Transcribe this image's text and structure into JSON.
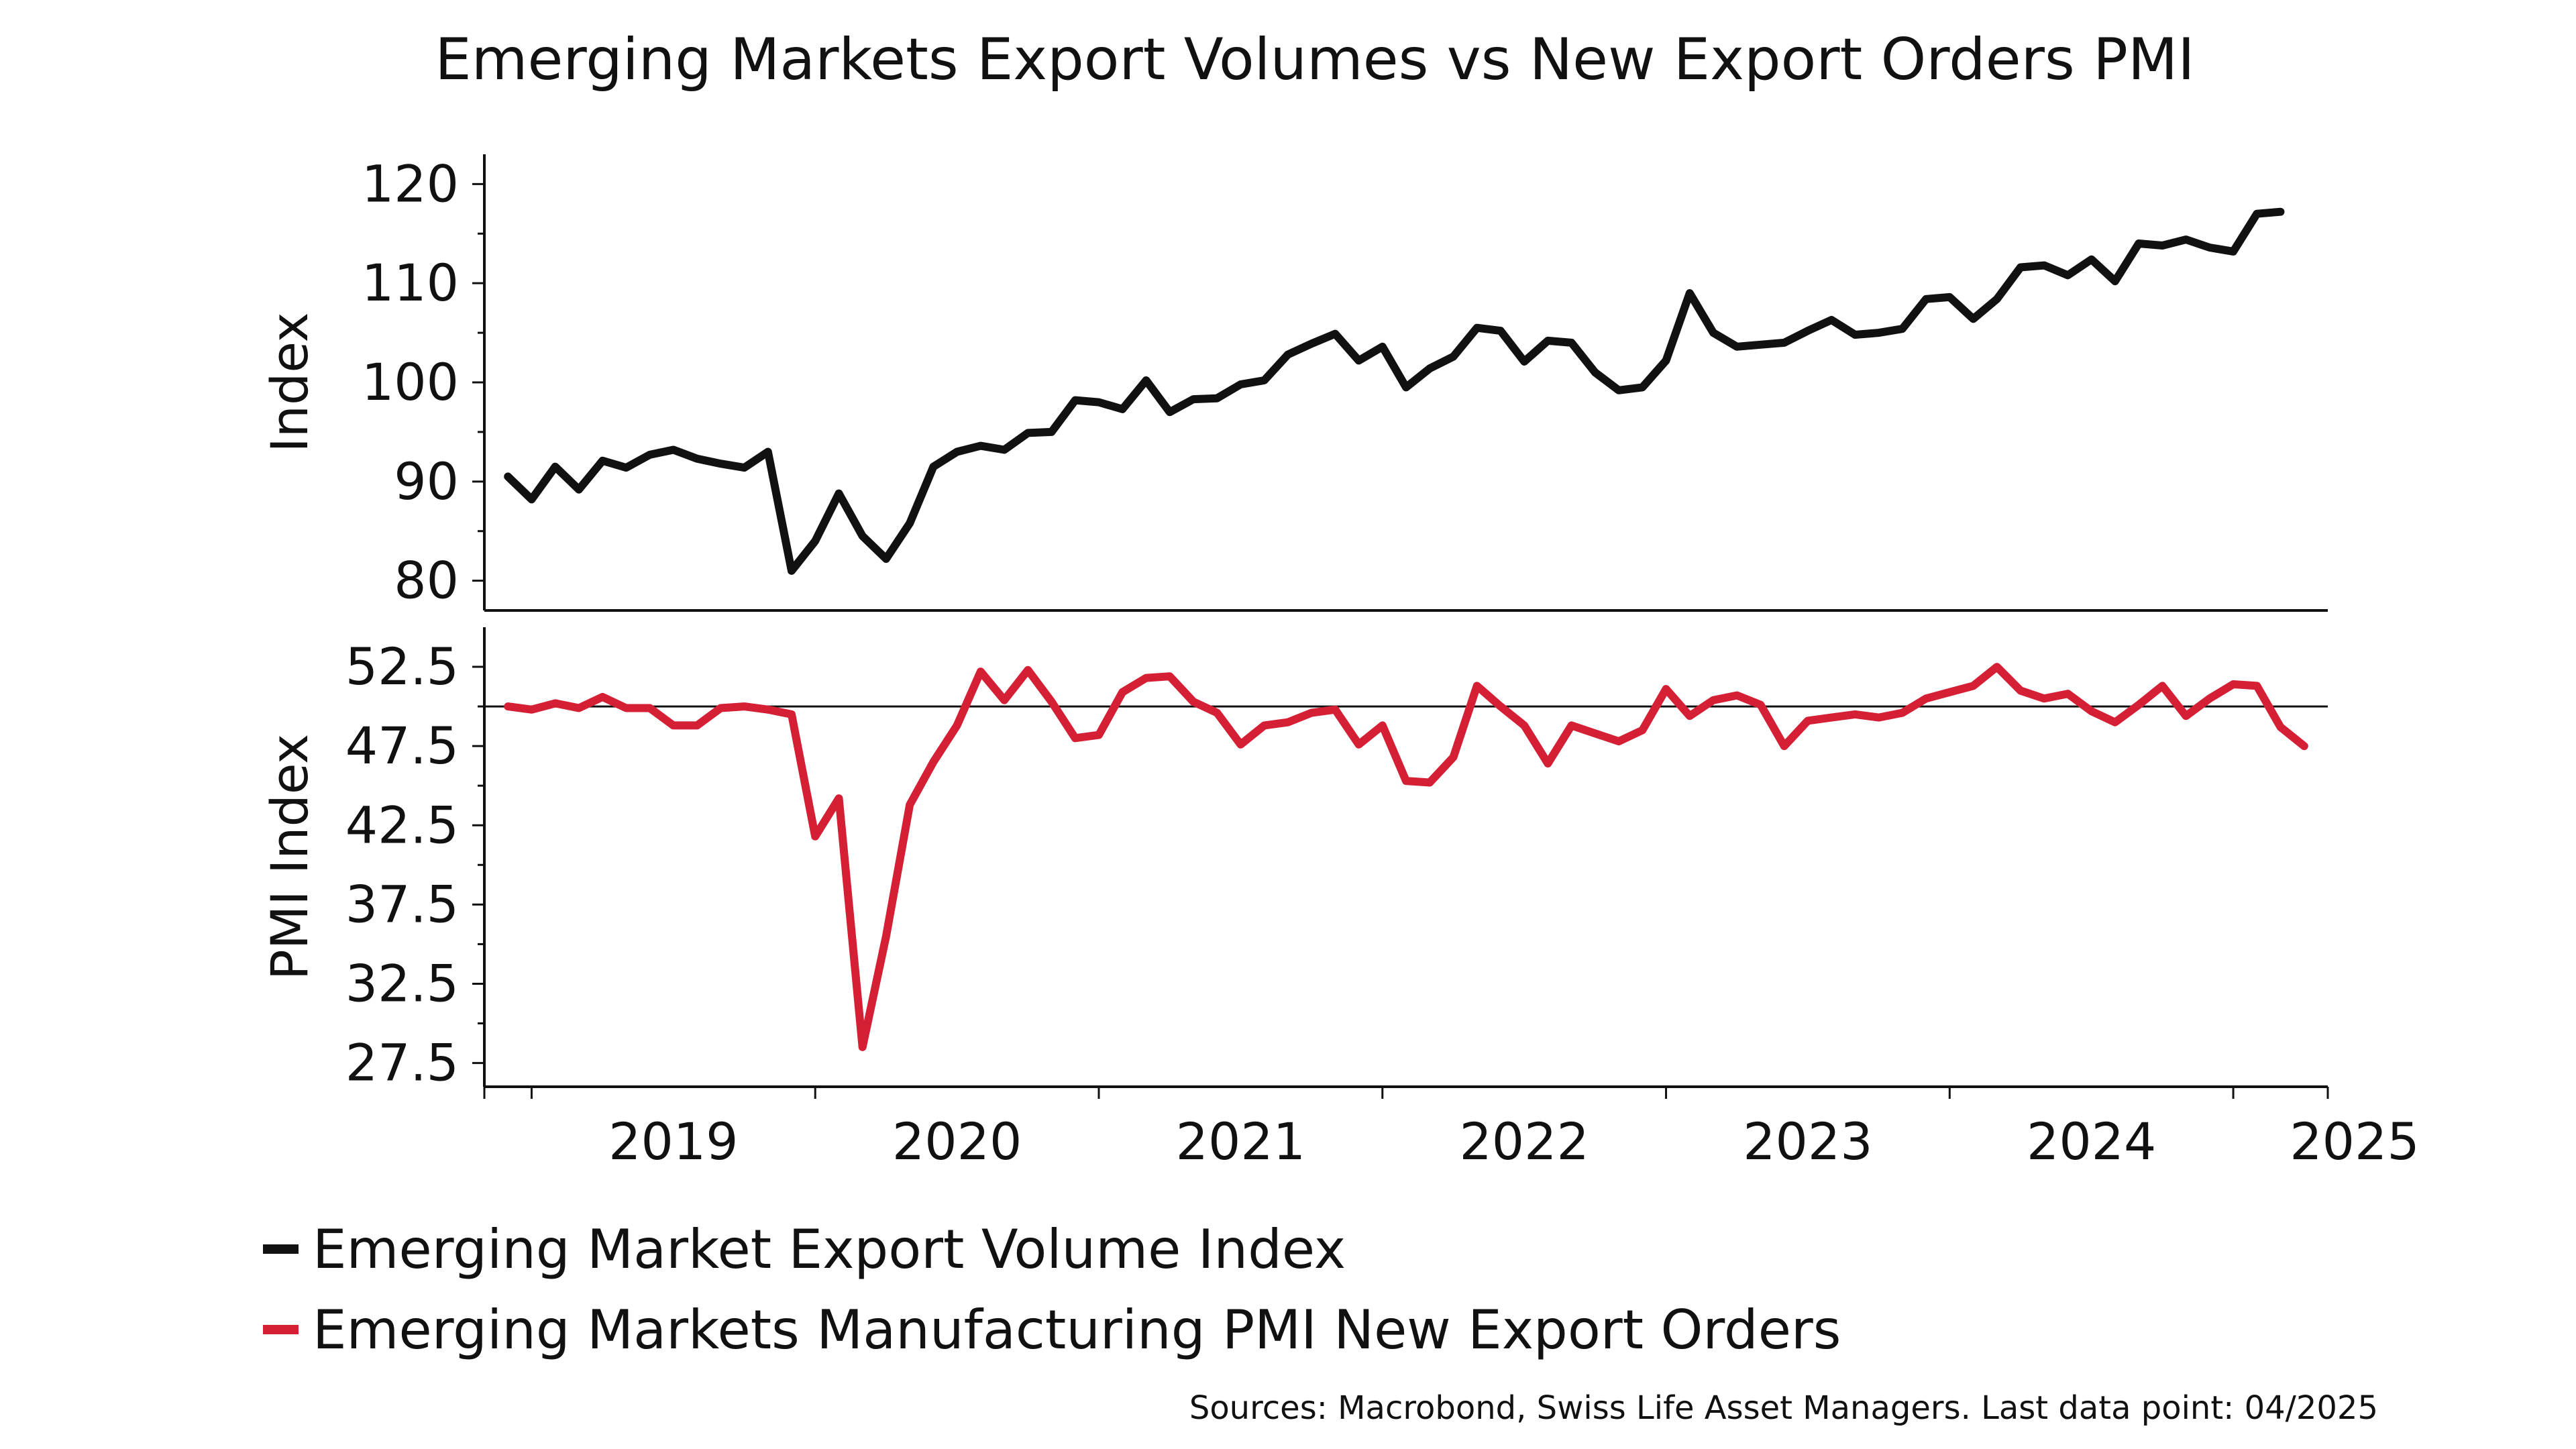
{
  "chart_data": {
    "type": "line",
    "title": "Emerging Markets Export Volumes vs New Export Orders PMI",
    "source": "Sources: Macrobond, Swiss Life Asset Managers. Last data point: 04/2025",
    "x_axis": {
      "labels": [
        "2019",
        "2020",
        "2021",
        "2022",
        "2023",
        "2024",
        "2025"
      ],
      "range": [
        "2018-11",
        "2025-05"
      ]
    },
    "panels": [
      {
        "ylabel": "Index",
        "ylim": [
          77,
          123
        ],
        "yticks": [
          "120",
          "110",
          "100",
          "90",
          "80"
        ],
        "series": [
          {
            "name": "Emerging Market Export Volume Index",
            "color": "#111111",
            "start": "2018-12",
            "values": [
              90.5,
              88.2,
              91.5,
              89.2,
              92.1,
              91.4,
              92.7,
              93.2,
              92.3,
              91.8,
              91.4,
              93.0,
              81.0,
              84.0,
              88.8,
              84.5,
              82.2,
              85.8,
              91.5,
              93.0,
              93.6,
              93.2,
              94.9,
              95.0,
              98.2,
              98.0,
              97.3,
              100.2,
              97.0,
              98.3,
              98.4,
              99.8,
              100.2,
              102.8,
              103.9,
              104.9,
              102.2,
              103.6,
              99.5,
              101.4,
              102.6,
              105.5,
              105.2,
              102.1,
              104.2,
              104.0,
              101.0,
              99.2,
              99.5,
              102.2,
              109.0,
              105.0,
              103.6,
              103.8,
              104.0,
              105.2,
              106.3,
              104.8,
              105.0,
              105.4,
              108.4,
              108.6,
              106.4,
              108.4,
              111.6,
              111.8,
              110.8,
              112.4,
              110.2,
              114.0,
              113.8,
              114.4,
              113.6,
              113.2,
              117.0,
              117.2
            ]
          }
        ]
      },
      {
        "ylabel": "PMI Index",
        "ylim": [
          26.0,
          55.0
        ],
        "yticks": [
          "52.5",
          "47.5",
          "42.5",
          "37.5",
          "32.5",
          "27.5"
        ],
        "reference_line": 50,
        "series": [
          {
            "name": "Emerging Markets Manufacturing PMI New Export Orders",
            "color": "#d41f35",
            "start": "2018-12",
            "values": [
              50.0,
              49.8,
              50.2,
              49.9,
              50.6,
              49.9,
              49.9,
              48.8,
              48.8,
              49.9,
              50.0,
              49.8,
              49.5,
              41.8,
              44.2,
              28.5,
              35.5,
              43.8,
              46.5,
              48.8,
              52.2,
              50.4,
              52.3,
              50.3,
              48.0,
              48.2,
              50.9,
              51.8,
              51.9,
              50.3,
              49.6,
              47.6,
              48.8,
              49.0,
              49.6,
              49.8,
              47.6,
              48.8,
              45.3,
              45.2,
              46.8,
              51.3,
              50.0,
              48.8,
              46.4,
              48.8,
              48.3,
              47.8,
              48.5,
              51.1,
              49.4,
              50.4,
              50.7,
              50.1,
              47.5,
              49.1,
              49.3,
              49.5,
              49.3,
              49.6,
              50.5,
              50.9,
              51.3,
              52.5,
              51.0,
              50.5,
              50.8,
              49.7,
              49.0,
              50.1,
              51.3,
              49.4,
              50.5,
              51.4,
              51.3,
              48.7,
              47.5
            ]
          }
        ]
      }
    ],
    "legend": {
      "placement": "bottom-left",
      "items": [
        {
          "label": "Emerging Market Export Volume Index",
          "color": "#111111"
        },
        {
          "label": "Emerging Markets Manufacturing PMI New Export Orders",
          "color": "#d41f35"
        }
      ]
    }
  }
}
